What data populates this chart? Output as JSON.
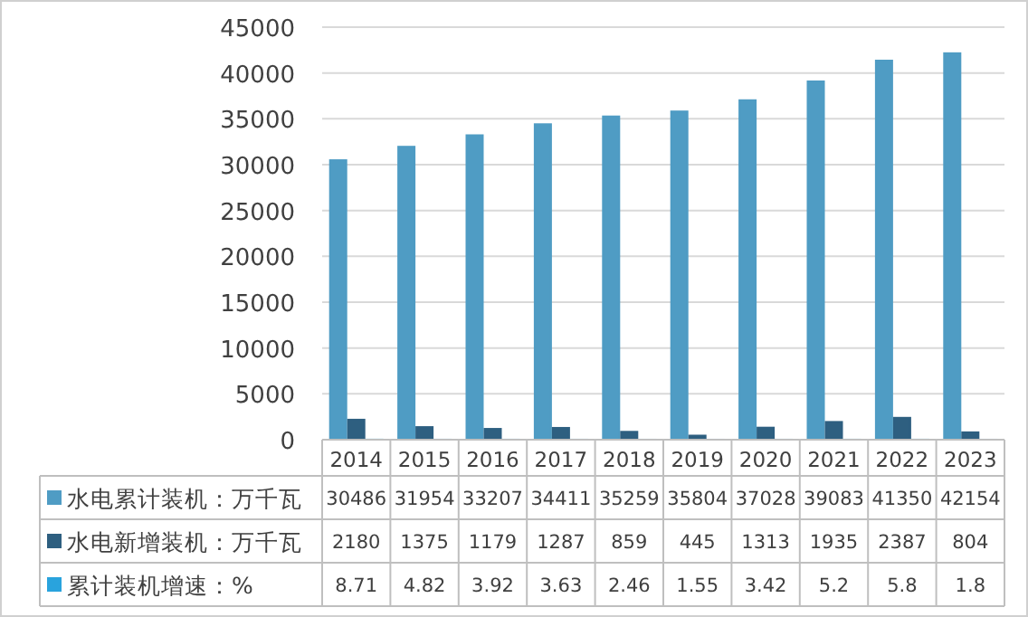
{
  "chart_data": {
    "type": "bar",
    "categories": [
      "2014",
      "2015",
      "2016",
      "2017",
      "2018",
      "2019",
      "2020",
      "2021",
      "2022",
      "2023"
    ],
    "series": [
      {
        "name": "水电累计装机：万千瓦",
        "color": "#4f9cc4",
        "values": [
          30486,
          31954,
          33207,
          34411,
          35259,
          35804,
          37028,
          39083,
          41350,
          42154
        ]
      },
      {
        "name": "水电新增装机：万千瓦",
        "color": "#2e5f80",
        "values": [
          2180,
          1375,
          1179,
          1287,
          859,
          445,
          1313,
          1935,
          2387,
          804
        ]
      },
      {
        "name": "累计装机增速：%",
        "color": "#29a3dd",
        "values": [
          8.71,
          4.82,
          3.92,
          3.63,
          2.46,
          1.55,
          3.42,
          5.2,
          5.8,
          1.8
        ]
      }
    ],
    "ylim": [
      0,
      45000
    ],
    "yticks": [
      0,
      5000,
      10000,
      15000,
      20000,
      25000,
      30000,
      35000,
      40000,
      45000
    ],
    "grid": "y",
    "data_labels": true,
    "legend": "bottom"
  }
}
